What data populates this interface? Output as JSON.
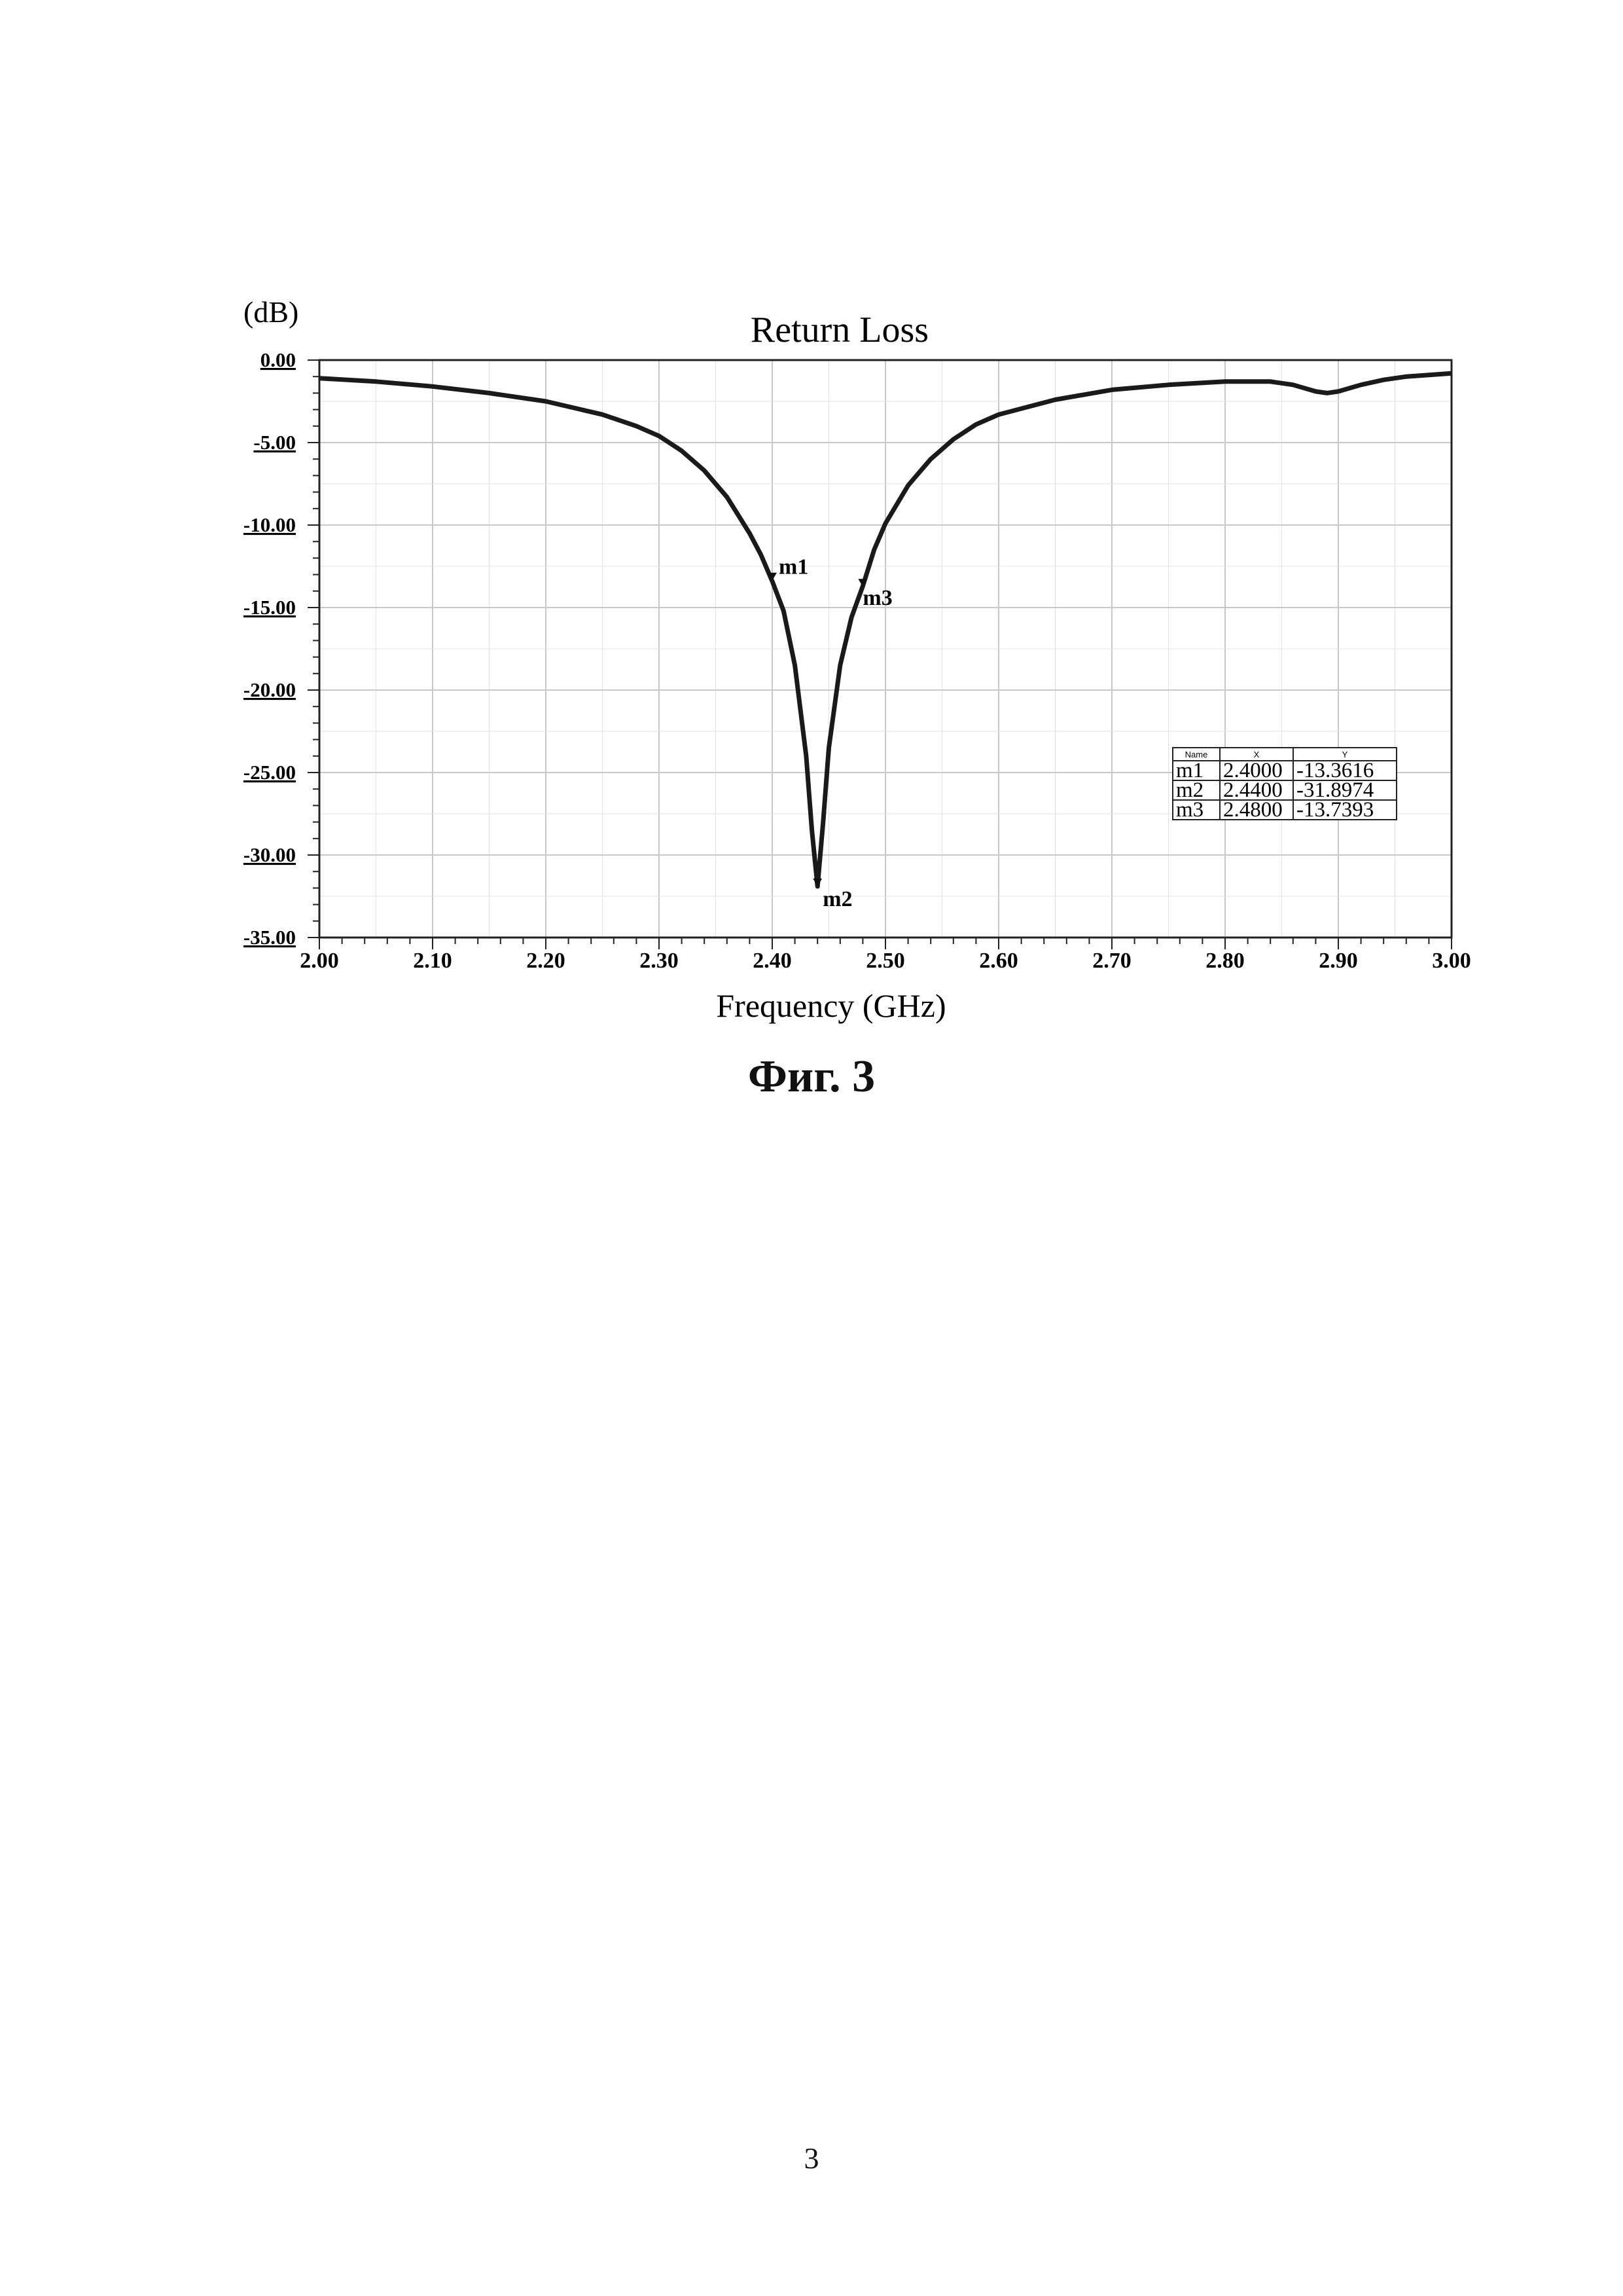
{
  "figure_caption": "Фиг. 3",
  "page_number": "3",
  "chart_data": {
    "type": "line",
    "title": "Return Loss",
    "ylabel": "(dB)",
    "xlabel": "Frequency (GHz)",
    "xlim": [
      2.0,
      3.0
    ],
    "ylim": [
      -35.0,
      0.0
    ],
    "x_ticks": [
      "2.00",
      "2.10",
      "2.20",
      "2.30",
      "2.40",
      "2.50",
      "2.60",
      "2.70",
      "2.80",
      "2.90",
      "3.00"
    ],
    "y_ticks": [
      "0.00",
      "-5.00",
      "-10.00",
      "-15.00",
      "-20.00",
      "-25.00",
      "-30.00",
      "-35.00"
    ],
    "grid": true,
    "series": [
      {
        "x": [
          2.0,
          2.05,
          2.1,
          2.15,
          2.2,
          2.25,
          2.28,
          2.3,
          2.32,
          2.34,
          2.36,
          2.38,
          2.39,
          2.4,
          2.41,
          2.42,
          2.43,
          2.435,
          2.44,
          2.445,
          2.45,
          2.46,
          2.47,
          2.48,
          2.49,
          2.5,
          2.52,
          2.54,
          2.56,
          2.58,
          2.6,
          2.65,
          2.7,
          2.75,
          2.8,
          2.82,
          2.84,
          2.86,
          2.88,
          2.89,
          2.9,
          2.92,
          2.94,
          2.96,
          2.98,
          3.0
        ],
        "y": [
          -1.1,
          -1.3,
          -1.6,
          -2.0,
          -2.5,
          -3.3,
          -4.0,
          -4.6,
          -5.5,
          -6.7,
          -8.3,
          -10.5,
          -11.8,
          -13.4,
          -15.2,
          -18.5,
          -24.0,
          -28.5,
          -31.9,
          -28.0,
          -23.5,
          -18.5,
          -15.6,
          -13.7,
          -11.5,
          -9.9,
          -7.6,
          -6.0,
          -4.8,
          -3.9,
          -3.3,
          -2.4,
          -1.8,
          -1.5,
          -1.3,
          -1.3,
          -1.3,
          -1.5,
          -1.9,
          -2.0,
          -1.9,
          -1.5,
          -1.2,
          -1.0,
          -0.9,
          -0.8
        ]
      }
    ],
    "markers": [
      {
        "name": "m1",
        "x": 2.4,
        "y": -13.3616
      },
      {
        "name": "m2",
        "x": 2.44,
        "y": -31.8974
      },
      {
        "name": "m3",
        "x": 2.48,
        "y": -13.7393
      }
    ],
    "marker_table": {
      "headers": [
        "Name",
        "X",
        "Y"
      ],
      "rows": [
        [
          "m1",
          "2.4000",
          "-13.3616"
        ],
        [
          "m2",
          "2.4400",
          "-31.8974"
        ],
        [
          "m3",
          "2.4800",
          "-13.7393"
        ]
      ],
      "placement": "right"
    }
  }
}
